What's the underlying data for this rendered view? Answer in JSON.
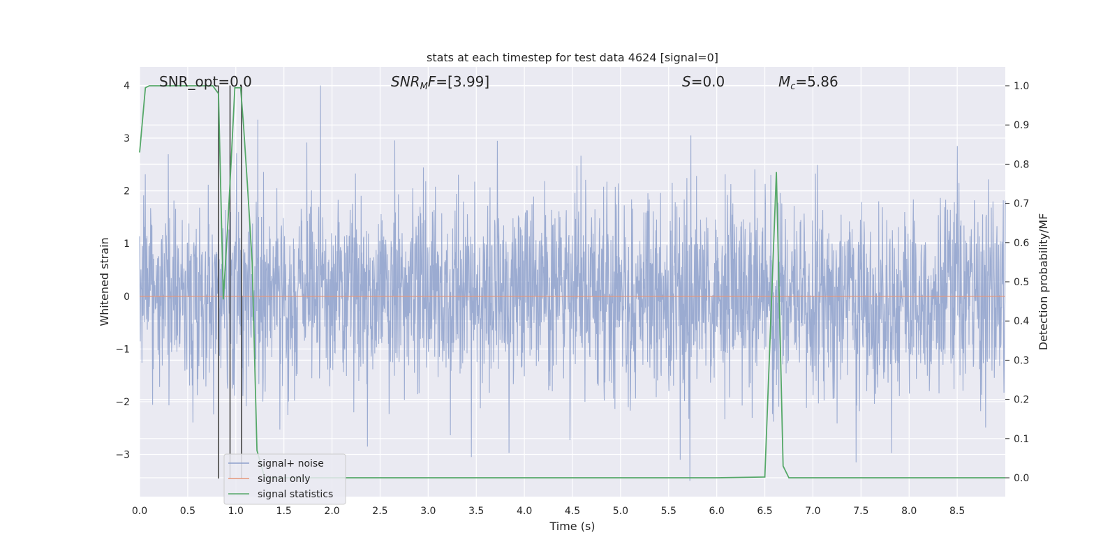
{
  "chart_data": {
    "type": "line",
    "title": "stats at each timestep for test data 4624 [signal=0]",
    "xlabel": "Time (s)",
    "ylabel": "Whitened strain",
    "ylabel_right": "Detection probability/MF",
    "xlim": [
      0,
      9.0
    ],
    "ylim": [
      -3.8,
      4.35
    ],
    "ylim_right": [
      -0.048,
      1.048
    ],
    "x_ticks": [
      "0.0",
      "0.5",
      "1.0",
      "1.5",
      "2.0",
      "2.5",
      "3.0",
      "3.5",
      "4.0",
      "4.5",
      "5.0",
      "5.5",
      "6.0",
      "6.5",
      "7.0",
      "7.5",
      "8.0",
      "8.5"
    ],
    "y_ticks": [
      "4",
      "3",
      "2",
      "1",
      "0",
      "−1",
      "−2",
      "−3"
    ],
    "y_ticks_right": [
      "1.0",
      "0.9",
      "0.8",
      "0.7",
      "0.6",
      "0.5",
      "0.4",
      "0.3",
      "0.2",
      "0.1",
      "0.0"
    ],
    "grid": true,
    "legend_position": "bottom-left",
    "annotations": {
      "snr_opt": "SNR_opt=0.0",
      "snr_mf_main": "SNR",
      "snr_mf_sub": "M",
      "snr_mf_end": "F",
      "snr_mf_value": "=[3.99]",
      "s_main": "S",
      "s_value": "=0.0",
      "mc_main": "M",
      "mc_sub": "c",
      "mc_value": "=5.86"
    },
    "vertical_lines_x": [
      0.82,
      0.94,
      1.06
    ],
    "series": [
      {
        "name": "signal+ noise",
        "color": "#8da0cb",
        "noise_envelope": {
          "typical_abs": 1.6,
          "peaks": [
            [
              1.88,
              4.0
            ],
            [
              1.23,
              3.35
            ],
            [
              5.72,
              -3.5
            ],
            [
              5.73,
              3.05
            ],
            [
              3.45,
              -3.05
            ],
            [
              7.45,
              -3.15
            ],
            [
              8.5,
              2.85
            ],
            [
              3.72,
              2.95
            ]
          ]
        }
      },
      {
        "name": "signal only",
        "color": "#e5967a",
        "values_constant": 0
      },
      {
        "name": "signal statistics",
        "color": "#55a868",
        "axis": "right",
        "x": [
          0.0,
          0.06,
          0.1,
          0.2,
          0.3,
          0.4,
          0.5,
          0.6,
          0.7,
          0.76,
          0.82,
          0.87,
          0.92,
          0.95,
          0.99,
          1.05,
          1.08,
          1.12,
          1.17,
          1.22,
          1.3,
          1.5,
          2.0,
          3.0,
          4.0,
          5.0,
          6.0,
          6.5,
          6.62,
          6.69,
          6.75,
          7.0,
          8.0,
          9.0
        ],
        "values": [
          0.83,
          0.995,
          1.0,
          1.0,
          1.0,
          1.0,
          1.0,
          1.0,
          1.0,
          1.0,
          0.98,
          0.455,
          0.66,
          0.8,
          0.995,
          0.995,
          0.9,
          0.75,
          0.55,
          0.07,
          0.0,
          0.0,
          0.0,
          0.0,
          0.0,
          0.0,
          0.0,
          0.002,
          0.78,
          0.03,
          0.0,
          0.0,
          0.0,
          0.0
        ]
      }
    ]
  }
}
